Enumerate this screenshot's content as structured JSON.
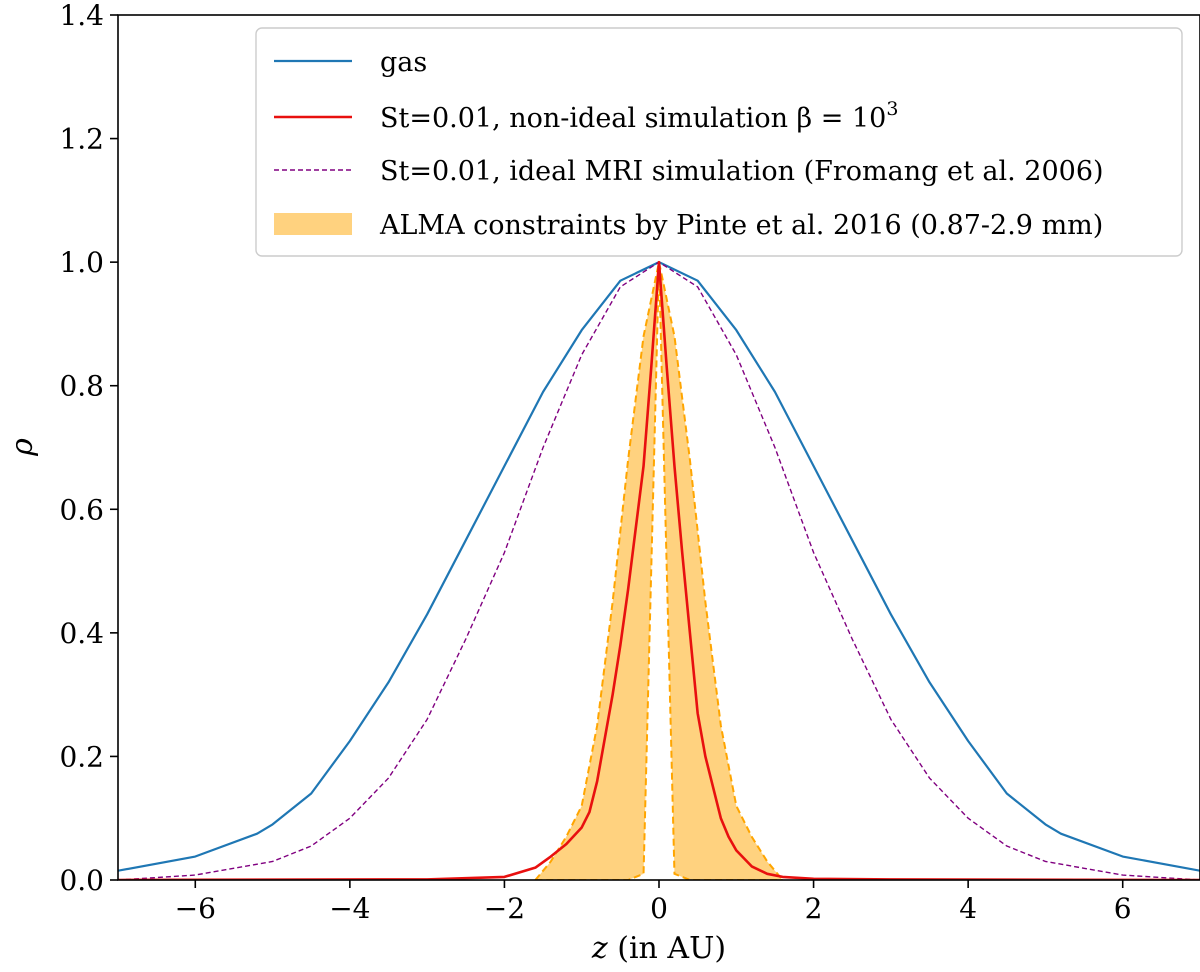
{
  "chart_data": {
    "type": "line",
    "title": "",
    "xlabel_var": "z",
    "xlabel_rest": " (in AU)",
    "ylabel": "ρ",
    "xlim": [
      -7,
      7
    ],
    "ylim": [
      0,
      1.4
    ],
    "xticks": [
      -6,
      -4,
      -2,
      0,
      2,
      4,
      6
    ],
    "xtick_labels": [
      "−6",
      "−4",
      "−2",
      "0",
      "2",
      "4",
      "6"
    ],
    "yticks": [
      0.0,
      0.2,
      0.4,
      0.6,
      0.8,
      1.0,
      1.2,
      1.4
    ],
    "ytick_labels": [
      "0.0",
      "0.2",
      "0.4",
      "0.6",
      "0.8",
      "1.0",
      "1.2",
      "1.4"
    ],
    "grid": false,
    "legend_position": "top-right",
    "colors": {
      "gas": "#1f77b4",
      "nonideal": "#e8100f",
      "ideal": "#800080",
      "alma_fill": "#ffd27f",
      "alma_edge": "#ffa500"
    },
    "series": [
      {
        "name": "gas",
        "label": "gas",
        "style": "solid",
        "x": [
          -7.0,
          -6.0,
          -5.2,
          -5.0,
          -4.5,
          -4.0,
          -3.5,
          -3.0,
          -2.5,
          -2.0,
          -1.5,
          -1.0,
          -0.5,
          0.0,
          0.5,
          1.0,
          1.5,
          2.0,
          2.5,
          3.0,
          3.5,
          4.0,
          4.5,
          5.0,
          5.2,
          6.0,
          7.0
        ],
        "y": [
          0.015,
          0.038,
          0.075,
          0.09,
          0.14,
          0.225,
          0.32,
          0.43,
          0.55,
          0.67,
          0.79,
          0.89,
          0.97,
          1.0,
          0.97,
          0.89,
          0.79,
          0.67,
          0.55,
          0.43,
          0.32,
          0.225,
          0.14,
          0.09,
          0.075,
          0.038,
          0.015
        ]
      },
      {
        "name": "nonideal",
        "label": "St=0.01, non-ideal simulation β = 10",
        "label_sup": "3",
        "style": "solid",
        "x": [
          -7.0,
          -3.0,
          -2.0,
          -1.6,
          -1.4,
          -1.2,
          -1.0,
          -0.9,
          -0.8,
          -0.7,
          -0.6,
          -0.5,
          -0.4,
          -0.3,
          -0.2,
          -0.1,
          0.0,
          0.1,
          0.2,
          0.3,
          0.4,
          0.5,
          0.6,
          0.7,
          0.8,
          0.9,
          1.0,
          1.2,
          1.4,
          1.6,
          2.0,
          3.0,
          7.0
        ],
        "y": [
          0.0,
          0.001,
          0.005,
          0.02,
          0.038,
          0.058,
          0.085,
          0.11,
          0.16,
          0.23,
          0.3,
          0.38,
          0.47,
          0.57,
          0.67,
          0.83,
          1.0,
          0.83,
          0.67,
          0.53,
          0.4,
          0.27,
          0.2,
          0.15,
          0.1,
          0.07,
          0.048,
          0.022,
          0.01,
          0.005,
          0.002,
          0.001,
          0.0
        ]
      },
      {
        "name": "ideal",
        "label": "St=0.01, ideal MRI simulation (Fromang et al. 2006)",
        "style": "dashed",
        "x": [
          -7.0,
          -6.0,
          -5.0,
          -4.5,
          -4.0,
          -3.5,
          -3.0,
          -2.5,
          -2.0,
          -1.5,
          -1.0,
          -0.5,
          0.0,
          0.5,
          1.0,
          1.5,
          2.0,
          2.5,
          3.0,
          3.5,
          4.0,
          4.5,
          5.0,
          6.0,
          7.0
        ],
        "y": [
          0.0,
          0.008,
          0.03,
          0.055,
          0.1,
          0.165,
          0.26,
          0.39,
          0.53,
          0.7,
          0.85,
          0.96,
          1.0,
          0.96,
          0.85,
          0.7,
          0.53,
          0.39,
          0.26,
          0.165,
          0.1,
          0.055,
          0.03,
          0.008,
          0.0
        ]
      }
    ],
    "band": {
      "name": "alma",
      "label": "ALMA constraints by Pinte et al. 2016 (0.87-2.9 mm)",
      "x": [
        -1.6,
        -1.4,
        -1.2,
        -1.0,
        -0.8,
        -0.6,
        -0.4,
        -0.2,
        0.0,
        0.2,
        0.4,
        0.6,
        0.8,
        1.0,
        1.2,
        1.4,
        1.6
      ],
      "upper": [
        0.0,
        0.03,
        0.07,
        0.12,
        0.25,
        0.45,
        0.68,
        0.88,
        1.0,
        0.88,
        0.68,
        0.45,
        0.25,
        0.12,
        0.07,
        0.03,
        0.0
      ],
      "lower": [
        0.0,
        0.0,
        0.0,
        0.0,
        0.0,
        0.0,
        0.0,
        0.01,
        1.0,
        0.01,
        0.0,
        0.0,
        0.0,
        0.0,
        0.0,
        0.0,
        0.0
      ]
    }
  }
}
